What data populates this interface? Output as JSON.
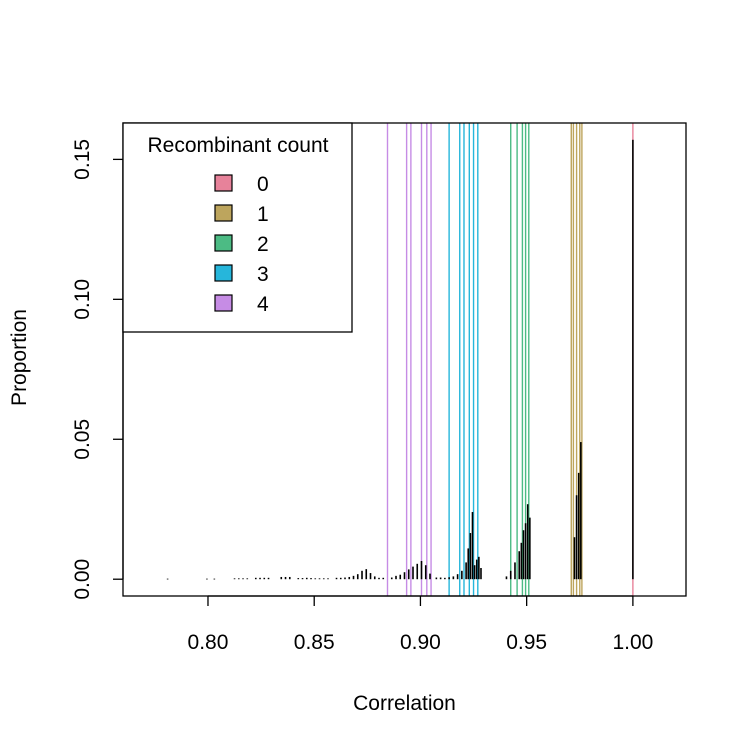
{
  "chart_data": {
    "type": "bar",
    "xlabel": "Correlation",
    "ylabel": "Proportion",
    "xlim": [
      0.76,
      1.025
    ],
    "ylim": [
      -0.006,
      0.163
    ],
    "x_ticks": [
      {
        "value": 0.8,
        "label": "0.80"
      },
      {
        "value": 0.85,
        "label": "0.85"
      },
      {
        "value": 0.9,
        "label": "0.90"
      },
      {
        "value": 0.95,
        "label": "0.95"
      },
      {
        "value": 1.0,
        "label": "1.00"
      }
    ],
    "y_ticks": [
      {
        "value": 0.0,
        "label": "0.00"
      },
      {
        "value": 0.05,
        "label": "0.05"
      },
      {
        "value": 0.1,
        "label": "0.10"
      },
      {
        "value": 0.15,
        "label": "0.15"
      }
    ],
    "grid": false,
    "legend": {
      "title": "Recombinant count",
      "placement": "top-left",
      "entries": [
        {
          "label": "0",
          "color": "#E7829A"
        },
        {
          "label": "1",
          "color": "#BDA55D"
        },
        {
          "label": "2",
          "color": "#4CBB84"
        },
        {
          "label": "3",
          "color": "#26B6DB"
        },
        {
          "label": "4",
          "color": "#C68CE5"
        }
      ]
    },
    "reference_lines": [
      {
        "group": "0",
        "color": "#E7829A",
        "x": [
          1.0
        ]
      },
      {
        "group": "1",
        "color": "#BDA55D",
        "x": [
          0.971,
          0.972,
          0.9735,
          0.975,
          0.976
        ]
      },
      {
        "group": "2",
        "color": "#4CBB84",
        "x": [
          0.9425,
          0.9455,
          0.948,
          0.9495,
          0.951
        ]
      },
      {
        "group": "3",
        "color": "#26B6DB",
        "x": [
          0.9135,
          0.9185,
          0.9205,
          0.923,
          0.925,
          0.927
        ]
      },
      {
        "group": "4",
        "color": "#C68CE5",
        "x": [
          0.8845,
          0.8935,
          0.8955,
          0.9005,
          0.903,
          0.905
        ]
      }
    ],
    "bars": {
      "color": "#000000",
      "x": [
        0.781,
        0.7995,
        0.803,
        0.8125,
        0.8145,
        0.8165,
        0.8185,
        0.8225,
        0.8245,
        0.8265,
        0.8285,
        0.8345,
        0.8365,
        0.8385,
        0.8425,
        0.8445,
        0.8465,
        0.8485,
        0.8505,
        0.8525,
        0.8545,
        0.8565,
        0.8605,
        0.8625,
        0.8645,
        0.8665,
        0.8685,
        0.8705,
        0.8725,
        0.8745,
        0.8765,
        0.8785,
        0.8805,
        0.8825,
        0.8865,
        0.8885,
        0.8905,
        0.8925,
        0.8945,
        0.8965,
        0.8985,
        0.9005,
        0.9025,
        0.9045,
        0.9075,
        0.9095,
        0.9115,
        0.9135,
        0.9155,
        0.9175,
        0.9195,
        0.9215,
        0.9225,
        0.9235,
        0.9245,
        0.9255,
        0.9265,
        0.9275,
        0.9285,
        0.9405,
        0.9425,
        0.9445,
        0.9465,
        0.9475,
        0.9485,
        0.9495,
        0.9505,
        0.9515,
        0.9725,
        0.9735,
        0.9745,
        0.9755,
        1.0
      ],
      "values": [
        0.0002,
        0.0002,
        0.0002,
        0.0003,
        0.0003,
        0.0003,
        0.0003,
        0.0005,
        0.0005,
        0.0005,
        0.0005,
        0.0008,
        0.0008,
        0.0008,
        0.0004,
        0.0004,
        0.0005,
        0.0004,
        0.0003,
        0.0003,
        0.0003,
        0.0003,
        0.0005,
        0.0005,
        0.0006,
        0.0008,
        0.0012,
        0.0018,
        0.003,
        0.0036,
        0.0022,
        0.001,
        0.0005,
        0.0005,
        0.0006,
        0.0012,
        0.0016,
        0.0025,
        0.0035,
        0.0045,
        0.0055,
        0.0065,
        0.005,
        0.002,
        0.0006,
        0.0006,
        0.0005,
        0.0007,
        0.001,
        0.0018,
        0.003,
        0.006,
        0.011,
        0.0165,
        0.024,
        0.005,
        0.007,
        0.008,
        0.004,
        0.001,
        0.003,
        0.006,
        0.01,
        0.013,
        0.0175,
        0.02,
        0.0268,
        0.022,
        0.015,
        0.03,
        0.038,
        0.049,
        0.157
      ]
    }
  }
}
